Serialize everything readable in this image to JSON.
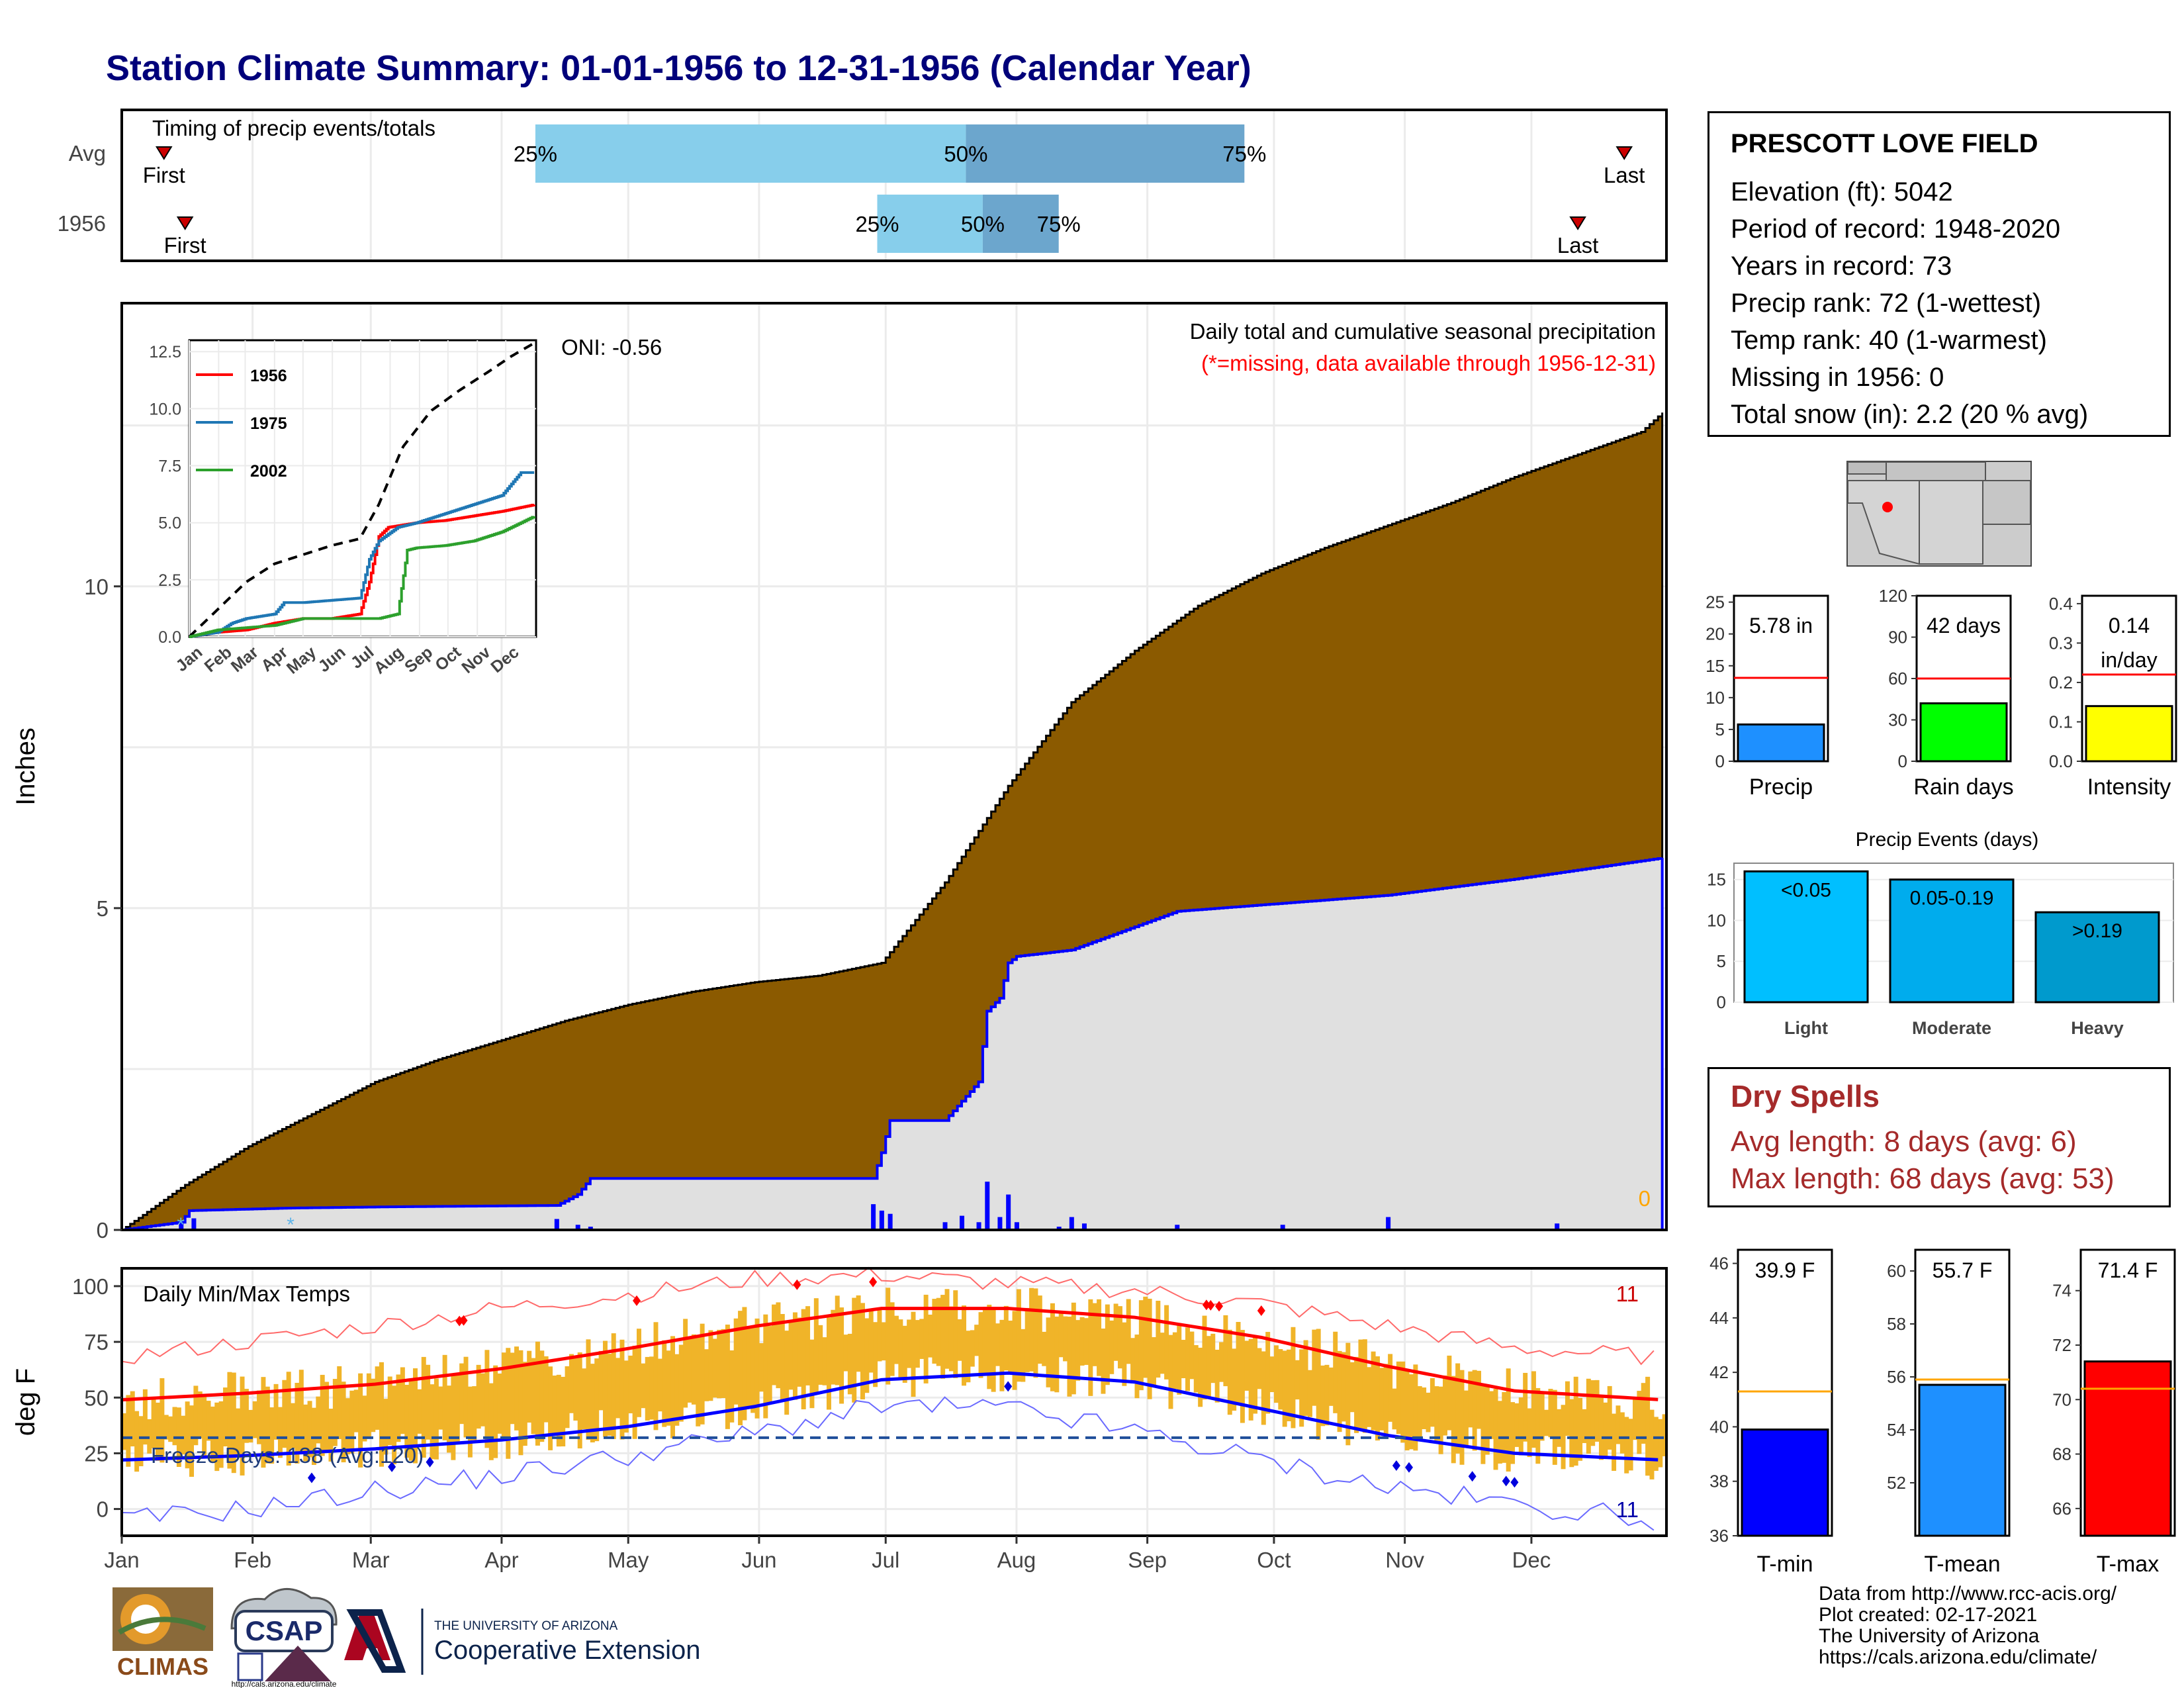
{
  "title": "Station Climate Summary: 01-01-1956 to 12-31-1956 (Calendar Year)",
  "station": {
    "name": "PRESCOTT LOVE FIELD",
    "lines": [
      "Elevation (ft): 5042",
      "Period of record: 1948-2020",
      "Years in record: 73",
      "Precip rank: 72 (1-wettest)",
      "Temp rank: 40 (1-warmest)",
      "Missing in 1956: 0",
      "Total snow (in): 2.2 (20 % avg)"
    ]
  },
  "dry_spells": {
    "title": "Dry Spells",
    "avg": "Avg length: 8 days (avg: 6)",
    "max": "Max length: 68 days (avg: 53)"
  },
  "footer": [
    "Data from http://www.rcc-acis.org/",
    "Plot created: 02-17-2021",
    "The University of Arizona",
    "https://cals.arizona.edu/climate/"
  ],
  "logos": {
    "climas": "CLIMAS",
    "csap": "CSAP",
    "csap_url": "http://cals.arizona.edu/climate",
    "ua_small": "THE UNIVERSITY OF ARIZONA",
    "ua_big": "Cooperative Extension"
  },
  "colors": {
    "cumulative_1956": "#8b5a00",
    "cumulative_avg": "#0000ff",
    "tmax_band": "#f0b429",
    "tmax_avg": "#ff0000",
    "tmin_avg": "#0000ff"
  },
  "chart_data": [
    {
      "id": "timing",
      "type": "bar",
      "title": "Timing of precip events/totals",
      "categories": [
        "Avg",
        "1956"
      ],
      "x_axis": "day of year",
      "rows": [
        {
          "label": "Avg",
          "first": "First",
          "last": "Last",
          "p25": "25%",
          "p50": "50%",
          "p75": "75%",
          "first_day": 10,
          "last_day": 356,
          "q25_day": 98,
          "q50_day": 200,
          "q75_day": 266
        },
        {
          "label": "1956",
          "first": "First",
          "last": "Last",
          "p25": "25%",
          "p50": "50%",
          "p75": "75%",
          "first_day": 15,
          "last_day": 345,
          "q25_day": 179,
          "q50_day": 204,
          "q75_day": 222
        }
      ]
    },
    {
      "id": "precip",
      "type": "area",
      "ylabel": "Inches",
      "ylim": [
        0,
        14.4
      ],
      "yticks": [
        "0",
        "5",
        "10"
      ],
      "months": [
        "Jan",
        "Feb",
        "Mar",
        "Apr",
        "May",
        "Jun",
        "Jul",
        "Aug",
        "Sep",
        "Oct",
        "Nov",
        "Dec"
      ],
      "subtitle": "Daily total and cumulative seasonal precipitation",
      "missing_note": "(*=missing, data available through 1956-12-31)",
      "oni": "ONI: -0.56",
      "corner_count": "0",
      "series": [
        {
          "name": "Avg cumulative",
          "x": [
            0,
            15,
            30,
            45,
            60,
            75,
            90,
            105,
            120,
            135,
            150,
            165,
            180,
            195,
            210,
            225,
            240,
            255,
            270,
            285,
            300,
            315,
            330,
            345,
            360,
            365
          ],
          "values": [
            0,
            0.7,
            1.3,
            1.8,
            2.3,
            2.65,
            2.95,
            3.25,
            3.5,
            3.7,
            3.85,
            3.95,
            4.15,
            5.4,
            6.9,
            8.2,
            9.0,
            9.7,
            10.2,
            10.6,
            10.95,
            11.3,
            11.7,
            12.05,
            12.4,
            12.7
          ]
        },
        {
          "name": "1956 cumulative",
          "x": [
            0,
            14,
            16,
            40,
            65,
            103,
            108,
            111,
            178,
            180,
            182,
            195,
            203,
            205,
            208,
            210,
            212,
            225,
            250,
            270,
            300,
            330,
            365
          ],
          "values": [
            0,
            0.12,
            0.3,
            0.34,
            0.36,
            0.38,
            0.55,
            0.8,
            0.8,
            1.2,
            1.7,
            1.7,
            2.3,
            3.4,
            3.6,
            4.15,
            4.25,
            4.35,
            4.95,
            5.05,
            5.2,
            5.45,
            5.78
          ]
        }
      ],
      "daily_bars": {
        "x": [
          14,
          17,
          103,
          108,
          111,
          178,
          180,
          182,
          195,
          199,
          203,
          205,
          208,
          210,
          212,
          222,
          225,
          228,
          250,
          275,
          300,
          340
        ],
        "values": [
          0.12,
          0.18,
          0.17,
          0.08,
          0.05,
          0.4,
          0.3,
          0.25,
          0.12,
          0.22,
          0.12,
          0.75,
          0.2,
          0.55,
          0.12,
          0.05,
          0.2,
          0.1,
          0.08,
          0.08,
          0.2,
          0.1
        ]
      },
      "insert": {
        "type": "line",
        "ylim": [
          0,
          13
        ],
        "yticks": [
          "0.0",
          "2.5",
          "5.0",
          "7.5",
          "10.0",
          "12.5"
        ],
        "months": [
          "Jan",
          "Feb",
          "Mar",
          "Apr",
          "May",
          "Jun",
          "Jul",
          "Aug",
          "Sep",
          "Oct",
          "Nov",
          "Dec"
        ],
        "legend": [
          "1956",
          "1975",
          "2002"
        ],
        "series": [
          {
            "name": "Avg",
            "x": [
              0,
              30,
              60,
              90,
              120,
              150,
              180,
              200,
              225,
              255,
              285,
              315,
              340,
              365
            ],
            "values": [
              0,
              1.2,
              2.4,
              3.2,
              3.6,
              4.0,
              4.3,
              5.8,
              8.3,
              9.9,
              10.8,
              11.6,
              12.3,
              12.9
            ]
          },
          {
            "name": "1956",
            "x": [
              0,
              30,
              60,
              90,
              120,
              150,
              180,
              190,
              200,
              210,
              240,
              270,
              300,
              330,
              365
            ],
            "values": [
              0,
              0.2,
              0.3,
              0.6,
              0.8,
              0.8,
              1.0,
              2.4,
              4.4,
              4.8,
              5.0,
              5.1,
              5.3,
              5.5,
              5.8
            ]
          },
          {
            "name": "1975",
            "x": [
              0,
              30,
              45,
              60,
              90,
              100,
              120,
              150,
              180,
              190,
              200,
              220,
              240,
              270,
              300,
              330,
              350,
              365
            ],
            "values": [
              0,
              0.2,
              0.6,
              0.8,
              1.0,
              1.5,
              1.5,
              1.6,
              1.7,
              3.4,
              4.2,
              4.8,
              5.0,
              5.4,
              5.8,
              6.2,
              7.2,
              7.2
            ]
          },
          {
            "name": "2002",
            "x": [
              0,
              30,
              60,
              90,
              120,
              150,
              180,
              200,
              220,
              230,
              240,
              270,
              300,
              330,
              365
            ],
            "values": [
              0,
              0.3,
              0.4,
              0.5,
              0.8,
              0.8,
              0.8,
              0.8,
              1.0,
              3.8,
              3.9,
              4.0,
              4.2,
              4.6,
              5.3
            ]
          }
        ]
      }
    },
    {
      "id": "temps",
      "type": "line",
      "title": "Daily Min/Max Temps",
      "ylabel": "deg F",
      "ylim": [
        -12,
        108
      ],
      "yticks": [
        "0",
        "25",
        "50",
        "75",
        "100"
      ],
      "months": [
        "Jan",
        "Feb",
        "Mar",
        "Apr",
        "May",
        "Jun",
        "Jul",
        "Aug",
        "Sep",
        "Oct",
        "Nov",
        "Dec"
      ],
      "freeze_label": "Freeze Days: 138 (Avg:120)",
      "freeze_line": 32,
      "count_top": "11",
      "count_bottom": "11",
      "avg_tmax": {
        "x": [
          0,
          30,
          60,
          90,
          120,
          150,
          180,
          210,
          240,
          270,
          300,
          330,
          365
        ],
        "values": [
          49,
          52,
          56,
          63,
          72,
          82,
          90,
          90,
          86,
          77,
          64,
          53,
          49
        ]
      },
      "avg_tmin": {
        "x": [
          0,
          30,
          60,
          90,
          120,
          150,
          180,
          210,
          240,
          270,
          300,
          330,
          365
        ],
        "values": [
          22,
          24,
          27,
          31,
          37,
          46,
          58,
          61,
          57,
          45,
          33,
          25,
          22
        ]
      },
      "record_high": {
        "x": [
          0,
          30,
          60,
          90,
          120,
          150,
          180,
          210,
          240,
          270,
          300,
          330,
          365
        ],
        "values": [
          68,
          75,
          82,
          90,
          96,
          103,
          105,
          101,
          98,
          92,
          82,
          72,
          68
        ]
      },
      "record_low": {
        "x": [
          0,
          30,
          60,
          90,
          120,
          150,
          180,
          210,
          240,
          270,
          300,
          330,
          365
        ],
        "values": [
          -5,
          0,
          8,
          15,
          24,
          34,
          46,
          45,
          35,
          22,
          10,
          2,
          -5
        ]
      }
    },
    {
      "id": "totals",
      "type": "bar",
      "panels": [
        {
          "label": "Precip",
          "value_label": "5.78 in",
          "value": 5.78,
          "avg": 13.1,
          "ylim": [
            0,
            26
          ],
          "yticks": [
            "0",
            "5",
            "10",
            "15",
            "20",
            "25"
          ],
          "color": "#1e90ff"
        },
        {
          "label": "Rain days",
          "value_label": "42 days",
          "value": 42,
          "avg": 60,
          "ylim": [
            0,
            120
          ],
          "yticks": [
            "0",
            "30",
            "60",
            "90",
            "120"
          ],
          "color": "#00ff00"
        },
        {
          "label": "Intensity",
          "value_label": "0.14",
          "value_label2": "in/day",
          "value": 0.14,
          "avg": 0.22,
          "ylim": [
            0,
            0.42
          ],
          "yticks": [
            "0.0",
            "0.1",
            "0.2",
            "0.3",
            "0.4"
          ],
          "color": "#ffff00"
        }
      ]
    },
    {
      "id": "events",
      "type": "bar",
      "title": "Precip Events (days)",
      "categories": [
        "Light",
        "Moderate",
        "Heavy"
      ],
      "bar_labels": [
        "<0.05",
        "0.05-0.19",
        ">0.19"
      ],
      "values": [
        16,
        15,
        11
      ],
      "ylim": [
        0,
        17
      ],
      "yticks": [
        "0",
        "5",
        "10",
        "15"
      ],
      "colors": [
        "#00bfff",
        "#00aced",
        "#009acd"
      ]
    },
    {
      "id": "temp_bars",
      "type": "bar",
      "panels": [
        {
          "label": "T-min",
          "value_label": "39.9 F",
          "value": 39.9,
          "avg": 41.3,
          "ylim": [
            36,
            46.5
          ],
          "yticks": [
            "36",
            "38",
            "40",
            "42",
            "44",
            "46"
          ],
          "color": "#0000ff"
        },
        {
          "label": "T-mean",
          "value_label": "55.7 F",
          "value": 55.7,
          "avg": 55.9,
          "ylim": [
            50,
            60.8
          ],
          "yticks": [
            "52",
            "54",
            "56",
            "58",
            "60"
          ],
          "color": "#1e90ff"
        },
        {
          "label": "T-max",
          "value_label": "71.4 F",
          "value": 71.4,
          "avg": 70.4,
          "ylim": [
            65,
            75.5
          ],
          "yticks": [
            "66",
            "68",
            "70",
            "72",
            "74"
          ],
          "color": "#ff0000"
        }
      ]
    }
  ]
}
